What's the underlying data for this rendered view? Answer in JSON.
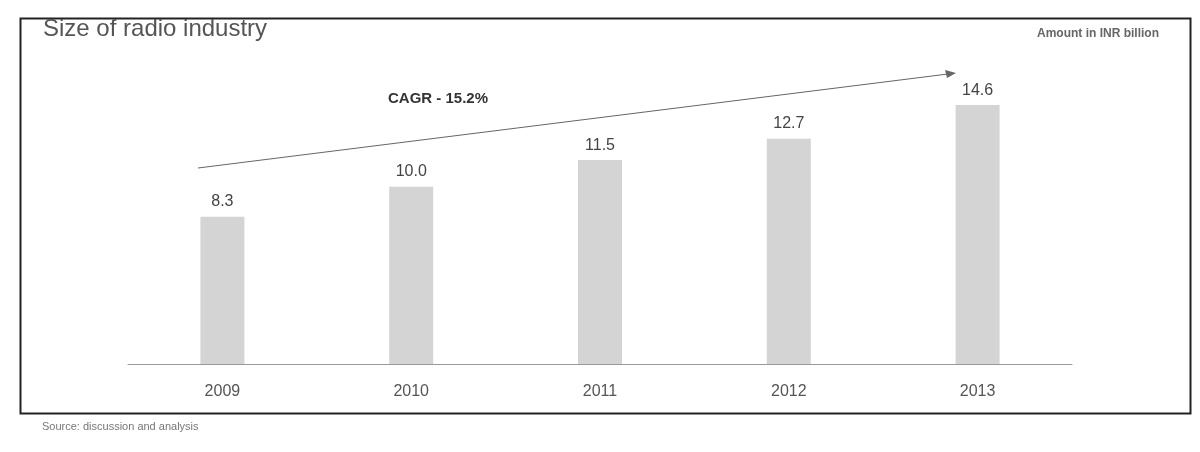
{
  "chart_data": {
    "type": "bar",
    "title": "Size of radio industry",
    "subtitle": "Amount in INR billion",
    "categories": [
      "2009",
      "2010",
      "2011",
      "2012",
      "2013"
    ],
    "values": [
      8.3,
      10.0,
      11.5,
      12.7,
      14.6
    ],
    "color": "#d4d4d4",
    "value_labels": [
      "8.3",
      "10.0",
      "11.5",
      "12.7",
      "14.6"
    ],
    "annotations": [
      "CAGR - 15.2%",
      "Source: discussion and analysis"
    ]
  }
}
